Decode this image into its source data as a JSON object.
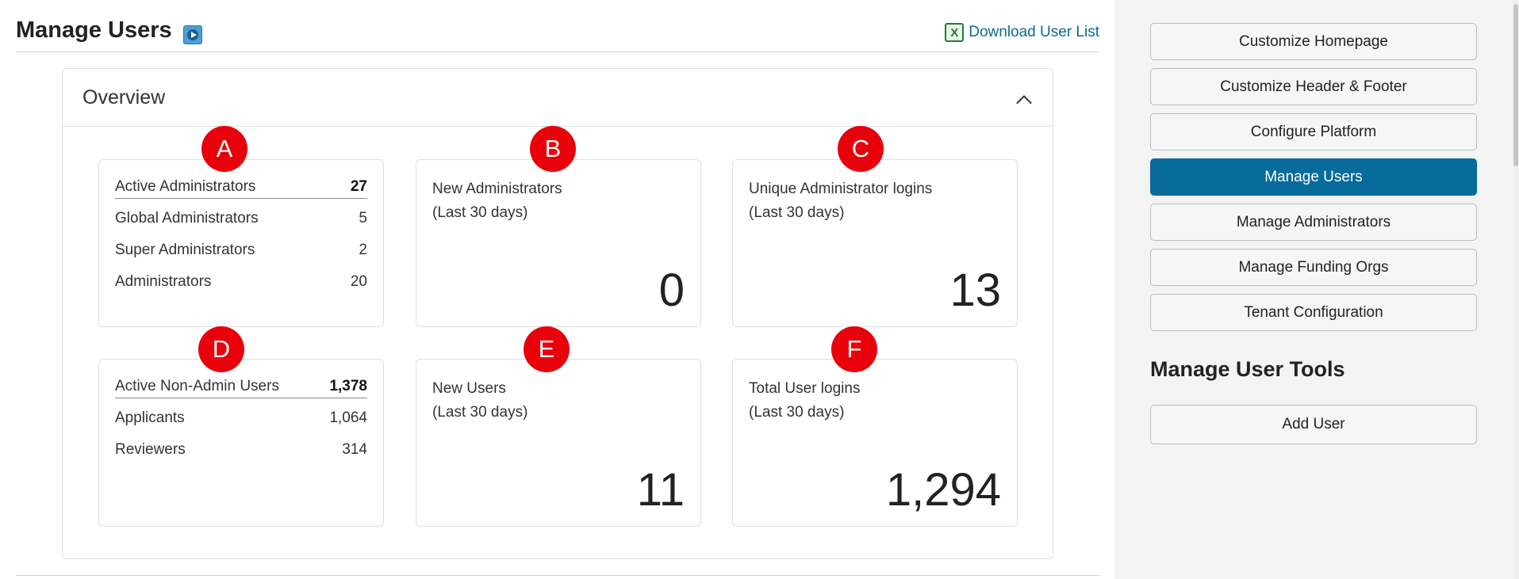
{
  "header": {
    "title": "Manage Users",
    "video_icon": "video-play-icon",
    "download_label": "Download User List",
    "download_icon": "excel-icon",
    "excel_glyph": "X"
  },
  "overview": {
    "title": "Overview",
    "collapse_icon": "chevron-up-icon",
    "cards": {
      "admins": {
        "marker": "A",
        "rows": [
          {
            "label": "Active Administrators",
            "value": "27"
          },
          {
            "label": "Global Administrators",
            "value": "5"
          },
          {
            "label": "Super Administrators",
            "value": "2"
          },
          {
            "label": "Administrators",
            "value": "20"
          }
        ]
      },
      "new_admins": {
        "marker": "B",
        "label1": "New Administrators",
        "label2": "(Last 30 days)",
        "value": "0"
      },
      "unique_logins": {
        "marker": "C",
        "label1": "Unique Administrator logins",
        "label2": "(Last 30 days)",
        "value": "13"
      },
      "non_admins": {
        "marker": "D",
        "rows": [
          {
            "label": "Active Non-Admin Users",
            "value": "1,378"
          },
          {
            "label": "Applicants",
            "value": "1,064"
          },
          {
            "label": "Reviewers",
            "value": "314"
          }
        ]
      },
      "new_users": {
        "marker": "E",
        "label1": "New Users",
        "label2": "(Last 30 days)",
        "value": "11"
      },
      "total_logins": {
        "marker": "F",
        "label1": "Total User logins",
        "label2": "(Last 30 days)",
        "value": "1,294"
      }
    }
  },
  "sidebar": {
    "buttons": [
      {
        "label": "Customize Homepage",
        "active": false
      },
      {
        "label": "Customize Header & Footer",
        "active": false
      },
      {
        "label": "Configure Platform",
        "active": false
      },
      {
        "label": "Manage Users",
        "active": true
      },
      {
        "label": "Manage Administrators",
        "active": false
      },
      {
        "label": "Manage Funding Orgs",
        "active": false
      },
      {
        "label": "Tenant Configuration",
        "active": false
      }
    ],
    "tools_title": "Manage User Tools",
    "tools_button": "Add User"
  },
  "colors": {
    "active_button": "#076b9c",
    "marker": "#e8000b",
    "link": "#0b6a93"
  }
}
